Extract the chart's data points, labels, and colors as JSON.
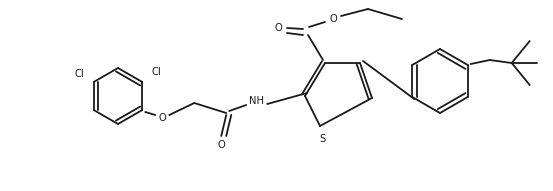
{
  "background_color": "#ffffff",
  "line_color": "#1a1a1a",
  "line_width": 1.3,
  "font_size": 7.2,
  "figsize": [
    5.53,
    1.91
  ],
  "dpi": 100,
  "xlim": [
    0,
    553
  ],
  "ylim": [
    0,
    191
  ]
}
